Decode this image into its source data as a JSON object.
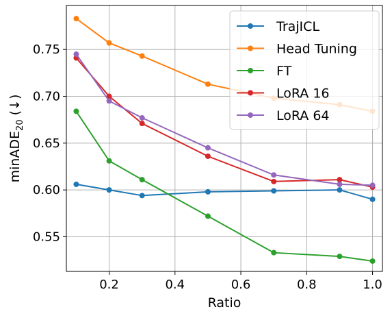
{
  "chart_data": {
    "type": "line",
    "xlabel": "Ratio",
    "ylabel_main": "minADE",
    "ylabel_sub": "20",
    "ylabel_suffix": " (↓)",
    "xlim": [
      0.07,
      1.03
    ],
    "ylim": [
      0.513,
      0.797
    ],
    "xticks": [
      0.2,
      0.4,
      0.6,
      0.8,
      1.0
    ],
    "xtick_labels": [
      "0.2",
      "0.4",
      "0.6",
      "0.8",
      "1.0"
    ],
    "yticks": [
      0.55,
      0.6,
      0.65,
      0.7,
      0.75
    ],
    "ytick_labels": [
      "0.55",
      "0.60",
      "0.65",
      "0.70",
      "0.75"
    ],
    "grid": true,
    "legend_position": "top-right",
    "x": [
      0.1,
      0.2,
      0.3,
      0.5,
      0.7,
      0.9,
      1.0
    ],
    "series": [
      {
        "name": "TrajICL",
        "color": "#1f77b4",
        "values": [
          0.606,
          0.6,
          0.594,
          0.598,
          0.599,
          0.6,
          0.59
        ]
      },
      {
        "name": "Head Tuning",
        "color": "#ff7f0e",
        "values": [
          0.783,
          0.757,
          0.743,
          0.713,
          0.698,
          0.691,
          0.684
        ]
      },
      {
        "name": "FT",
        "color": "#2ca02c",
        "values": [
          0.684,
          0.631,
          0.611,
          0.572,
          0.533,
          0.529,
          0.524
        ]
      },
      {
        "name": "LoRA 16",
        "color": "#d62728",
        "values": [
          0.741,
          0.7,
          0.671,
          0.636,
          0.609,
          0.611,
          0.603
        ]
      },
      {
        "name": "LoRA 64",
        "color": "#9467bd",
        "values": [
          0.745,
          0.695,
          0.677,
          0.645,
          0.616,
          0.606,
          0.605
        ]
      }
    ]
  }
}
